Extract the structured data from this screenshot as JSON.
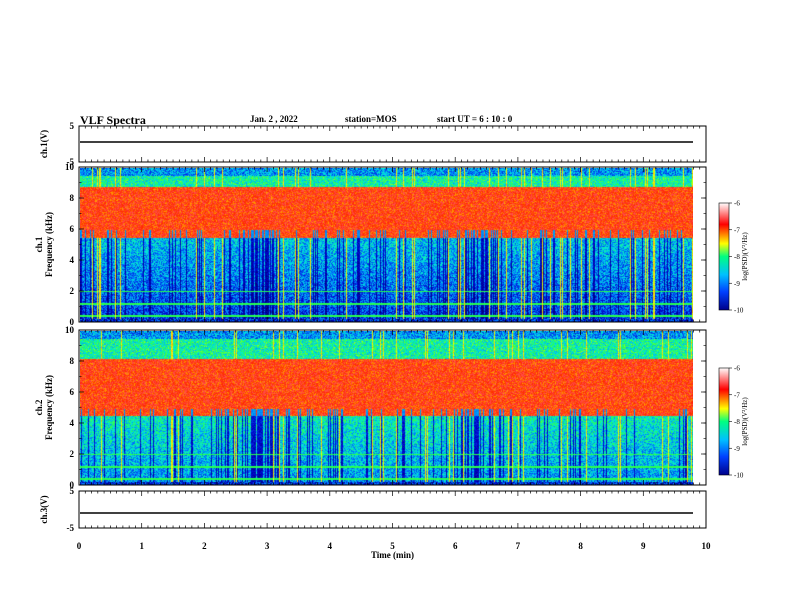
{
  "header": {
    "title": "VLF Spectra",
    "date": "Jan. 2 , 2022",
    "station": "station=MOS",
    "start": "start UT = 6 : 10 : 0"
  },
  "chart_data": [
    {
      "type": "line",
      "panel": "ch1-waveform",
      "ylabel": "ch.1(V)",
      "ylim": [
        -5,
        5
      ],
      "yticks": [
        "5",
        "-5"
      ],
      "x": [
        0,
        10
      ],
      "values": [
        0,
        0
      ]
    },
    {
      "type": "heatmap",
      "panel": "ch1-spectrogram",
      "ylabel": "ch.1\nFrequency (kHz)",
      "ylim": [
        0,
        10
      ],
      "yticks": [
        "0",
        "2",
        "4",
        "6",
        "8",
        "10"
      ],
      "xlim": [
        0,
        9.85
      ],
      "colorbar": {
        "label": "log(PSD)(V²/Hz)",
        "range": [
          -10,
          -6
        ],
        "ticks": [
          "-6",
          "-7",
          "-8",
          "-9",
          "-10"
        ]
      }
    },
    {
      "type": "heatmap",
      "panel": "ch2-spectrogram",
      "ylabel": "ch.2\nFrequency (kHz)",
      "ylim": [
        0,
        10
      ],
      "yticks": [
        "0",
        "2",
        "4",
        "6",
        "8",
        "10"
      ],
      "xlim": [
        0,
        9.85
      ],
      "colorbar": {
        "label": "log(PSD)(V²/Hz)",
        "range": [
          -10,
          -6
        ],
        "ticks": [
          "-6",
          "-7",
          "-8",
          "-9",
          "-10"
        ]
      }
    },
    {
      "type": "line",
      "panel": "ch3-waveform",
      "ylabel": "ch.3(V)",
      "ylim": [
        -5,
        5
      ],
      "yticks": [
        "5",
        "-5"
      ],
      "x": [
        0,
        10
      ],
      "values": [
        0,
        0
      ]
    }
  ],
  "xaxis": {
    "label": "Time (min)",
    "range": [
      0,
      10
    ],
    "ticks": [
      "0",
      "1",
      "2",
      "3",
      "4",
      "5",
      "6",
      "7",
      "8",
      "9",
      "10"
    ]
  },
  "colors": {
    "spectrogram_scale": [
      "#00008a",
      "#0040ff",
      "#00c0ff",
      "#00ff80",
      "#ffff00",
      "#ff0000",
      "#ffffff"
    ]
  }
}
